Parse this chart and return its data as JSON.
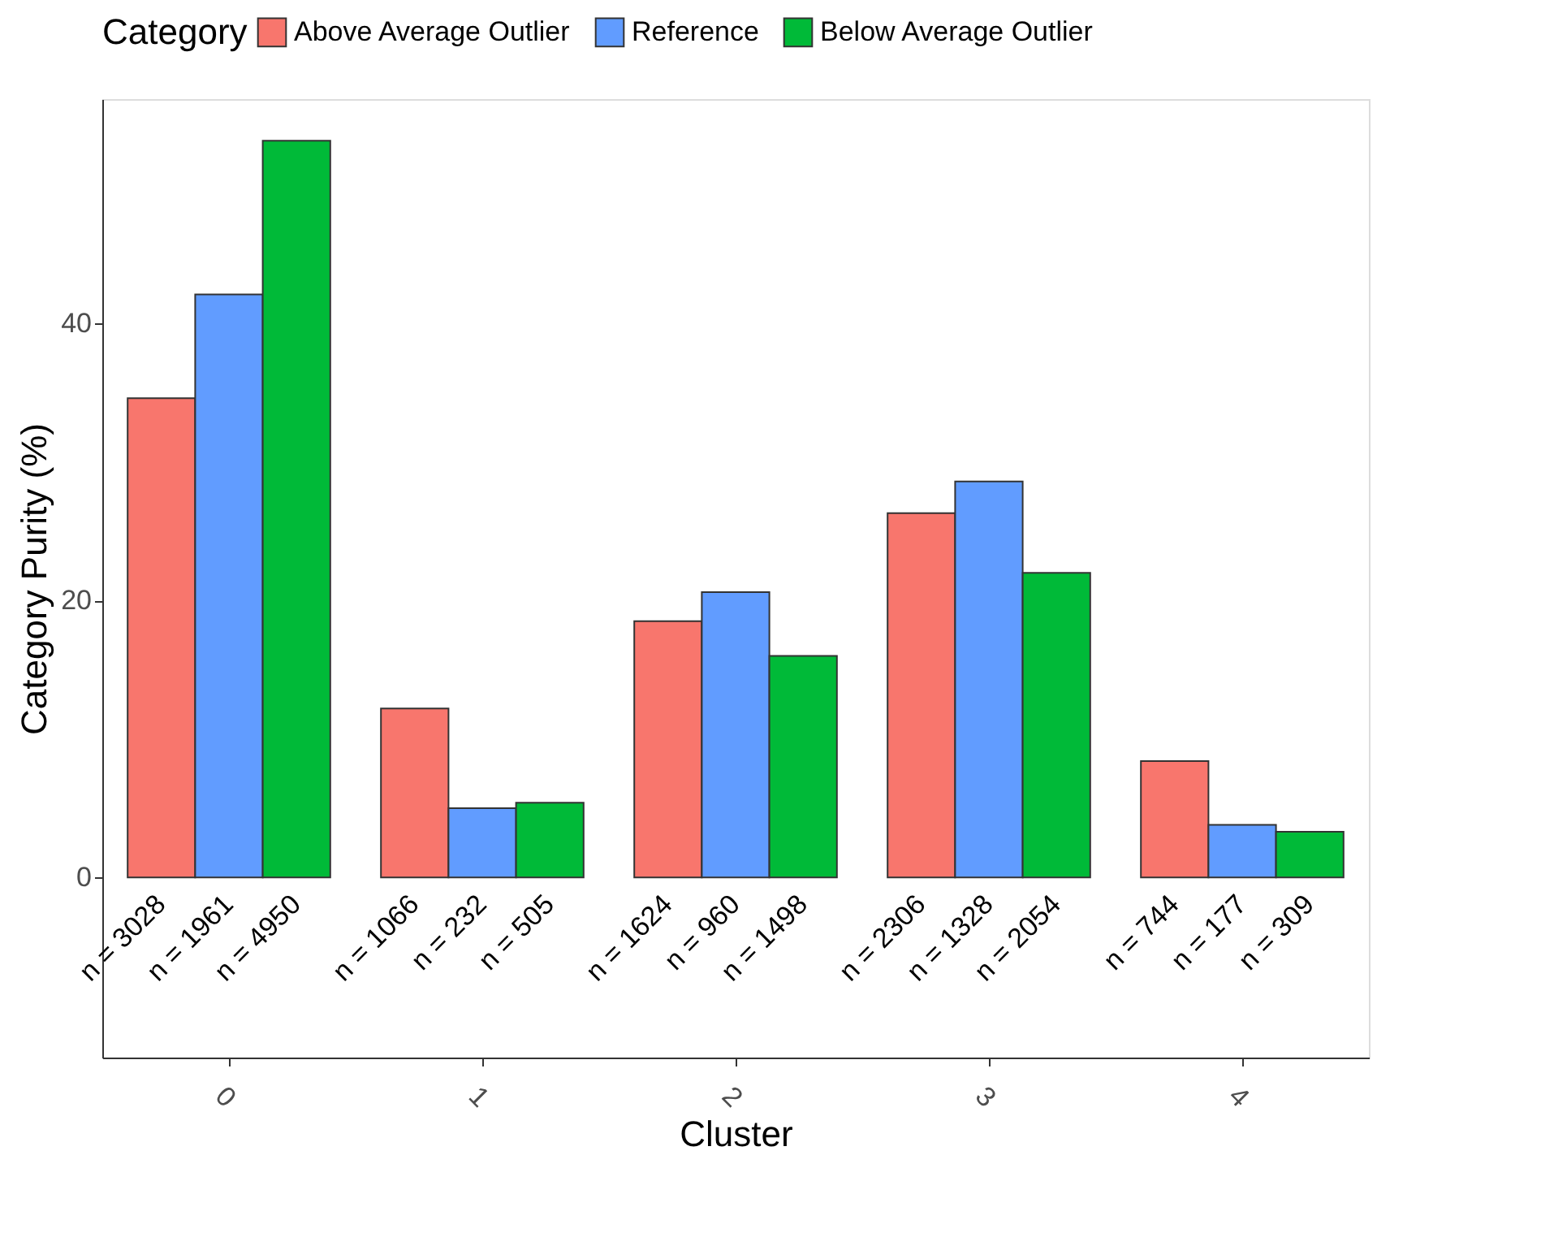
{
  "chart_data": {
    "type": "bar",
    "xlabel": "Cluster",
    "ylabel": "Category Purity (%)",
    "legend_title": "Category",
    "legend": "top",
    "categories": [
      "0",
      "1",
      "2",
      "3",
      "4"
    ],
    "series": [
      {
        "name": "Above Average Outlier",
        "color": "#f8766d",
        "values": [
          34.6,
          12.2,
          18.5,
          26.3,
          8.4
        ]
      },
      {
        "name": "Reference",
        "color": "#619cff",
        "values": [
          42.1,
          5.0,
          20.6,
          28.6,
          3.8
        ]
      },
      {
        "name": "Below Average Outlier",
        "color": "#00ba38",
        "values": [
          53.2,
          5.4,
          16.0,
          22.0,
          3.3
        ]
      }
    ],
    "ylim": [
      -13.0,
      56.2
    ],
    "yticks": [
      0,
      20,
      40
    ],
    "grid": false,
    "annotations": [
      "n = 3028",
      "n = 1961",
      "n = 4950",
      "n = 1066",
      "n = 232",
      "n = 505",
      "n = 1624",
      "n = 960",
      "n = 1498",
      "n = 2306",
      "n = 1328",
      "n = 2054",
      "n = 744",
      "n = 177",
      "n = 309"
    ]
  }
}
